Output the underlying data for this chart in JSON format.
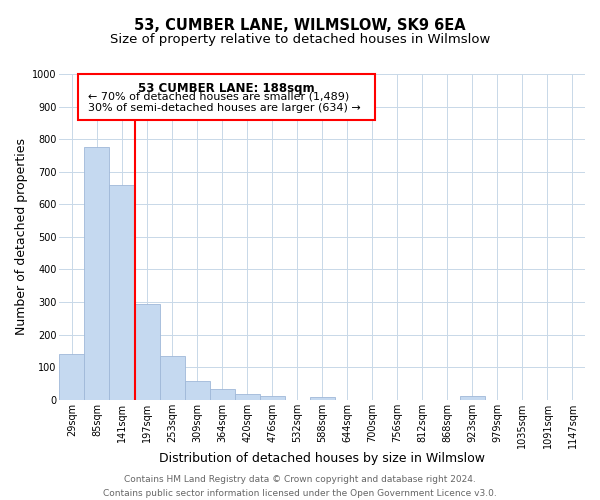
{
  "title": "53, CUMBER LANE, WILMSLOW, SK9 6EA",
  "subtitle": "Size of property relative to detached houses in Wilmslow",
  "xlabel": "Distribution of detached houses by size in Wilmslow",
  "ylabel": "Number of detached properties",
  "bar_labels": [
    "29sqm",
    "85sqm",
    "141sqm",
    "197sqm",
    "253sqm",
    "309sqm",
    "364sqm",
    "420sqm",
    "476sqm",
    "532sqm",
    "588sqm",
    "644sqm",
    "700sqm",
    "756sqm",
    "812sqm",
    "868sqm",
    "923sqm",
    "979sqm",
    "1035sqm",
    "1091sqm",
    "1147sqm"
  ],
  "bar_values": [
    140,
    775,
    660,
    295,
    135,
    57,
    32,
    18,
    10,
    0,
    7,
    0,
    0,
    0,
    0,
    0,
    10,
    0,
    0,
    0,
    0
  ],
  "bar_color": "#c5d9f0",
  "bar_edge_color": "#a0b8d8",
  "vline_x": 3,
  "vline_color": "red",
  "annotation_title": "53 CUMBER LANE: 188sqm",
  "annotation_line1": "← 70% of detached houses are smaller (1,489)",
  "annotation_line2": "30% of semi-detached houses are larger (634) →",
  "annotation_box_edge": "red",
  "ylim": [
    0,
    1000
  ],
  "yticks": [
    0,
    100,
    200,
    300,
    400,
    500,
    600,
    700,
    800,
    900,
    1000
  ],
  "footer_line1": "Contains HM Land Registry data © Crown copyright and database right 2024.",
  "footer_line2": "Contains public sector information licensed under the Open Government Licence v3.0.",
  "title_fontsize": 10.5,
  "subtitle_fontsize": 9.5,
  "axis_label_fontsize": 9,
  "tick_fontsize": 7,
  "footer_fontsize": 6.5,
  "annotation_title_fontsize": 8.5,
  "annotation_text_fontsize": 8,
  "background_color": "#ffffff",
  "grid_color": "#c8d8e8"
}
